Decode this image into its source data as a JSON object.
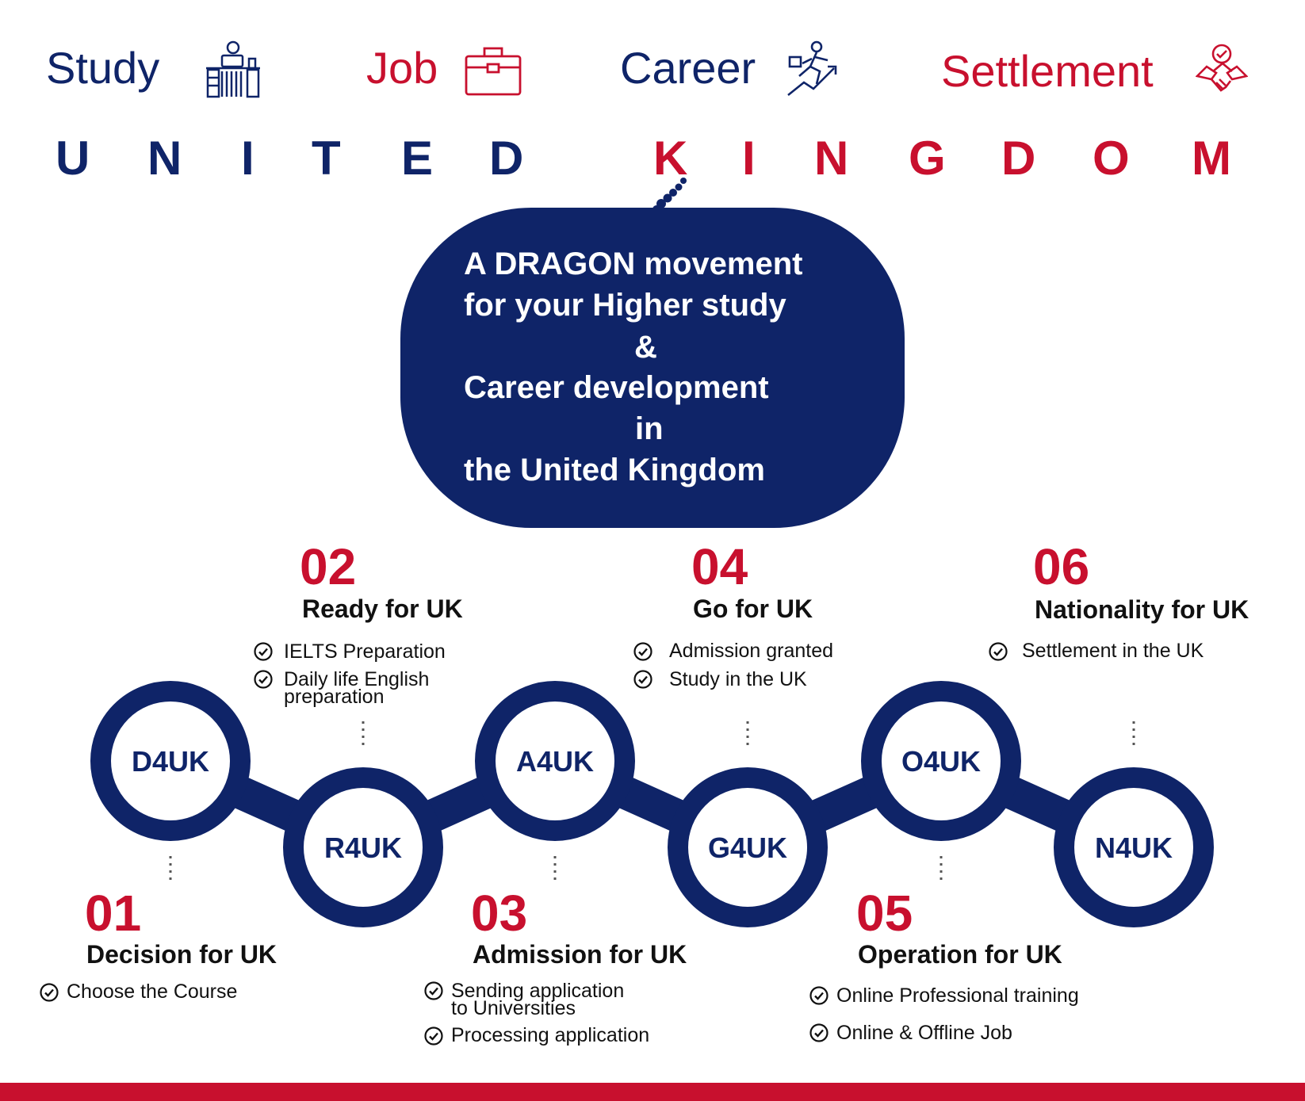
{
  "header": {
    "items": [
      {
        "label": "Study",
        "icon": "student-desk-icon",
        "color": "#0f2468"
      },
      {
        "label": "Job",
        "icon": "briefcase-icon",
        "color": "#c8102e"
      },
      {
        "label": "Career",
        "icon": "career-growth-icon",
        "color": "#0f2468"
      },
      {
        "label": "Settlement",
        "icon": "handshake-icon",
        "color": "#c8102e"
      }
    ]
  },
  "country": {
    "word1": [
      "U",
      "N",
      "I",
      "T",
      "E",
      "D"
    ],
    "word2": [
      "K",
      "I",
      "N",
      "G",
      "D",
      "O",
      "M"
    ]
  },
  "bubble": {
    "lines": [
      "A DRAGON movement",
      "for your Higher study",
      "&",
      "Career development",
      "in",
      "the United Kingdom"
    ]
  },
  "steps": [
    {
      "number": "01",
      "code": "D4UK",
      "title": "Decision for UK",
      "items": [
        "Choose the Course"
      ]
    },
    {
      "number": "02",
      "code": "R4UK",
      "title": "Ready for UK",
      "items": [
        "IELTS Preparation",
        "Daily life English\npreparation"
      ]
    },
    {
      "number": "03",
      "code": "A4UK",
      "title": "Admission for UK",
      "items": [
        "Sending application\nto Universities",
        "Processing application"
      ]
    },
    {
      "number": "04",
      "code": "G4UK",
      "title": "Go for UK",
      "items": [
        "Admission granted",
        "Study in the UK"
      ]
    },
    {
      "number": "05",
      "code": "O4UK",
      "title": "Operation for UK",
      "items": [
        "Online Professional training",
        "Online & Offline Job"
      ]
    },
    {
      "number": "06",
      "code": "N4UK",
      "title": "Nationality for UK",
      "items": [
        "Settlement in the UK"
      ]
    }
  ],
  "colors": {
    "navy": "#0f2468",
    "red": "#c8102e",
    "text": "#111111"
  }
}
